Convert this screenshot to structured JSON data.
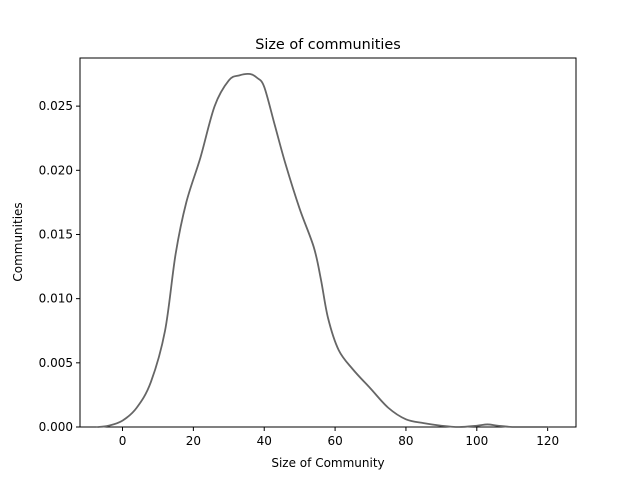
{
  "chart_data": {
    "type": "line",
    "title": "Size of communities",
    "xlabel": "Size of Community",
    "ylabel": "Communities",
    "xlim": [
      -12,
      128
    ],
    "ylim": [
      0,
      0.02875
    ],
    "xticks": [
      0,
      20,
      40,
      60,
      80,
      100,
      120
    ],
    "xtick_labels": [
      "0",
      "20",
      "40",
      "60",
      "80",
      "100",
      "120"
    ],
    "yticks": [
      0.0,
      0.005,
      0.01,
      0.015,
      0.02,
      0.025
    ],
    "ytick_labels": [
      "0.000",
      "0.005",
      "0.010",
      "0.015",
      "0.020",
      "0.025"
    ],
    "grid": false,
    "legend": "none",
    "series": [
      {
        "color": "#666666",
        "x": [
          -7,
          -4,
          0,
          4,
          8,
          12,
          15,
          18,
          22,
          26,
          30,
          33,
          36,
          38,
          40,
          43,
          46,
          50,
          54,
          56,
          58,
          61,
          65,
          70,
          75,
          80,
          85,
          90,
          95,
          100,
          103,
          106,
          110,
          115,
          120
        ],
        "y": [
          0.0,
          0.0001,
          0.0005,
          0.0015,
          0.0035,
          0.0075,
          0.0135,
          0.0175,
          0.021,
          0.025,
          0.027,
          0.0274,
          0.0275,
          0.0272,
          0.0265,
          0.0235,
          0.0205,
          0.017,
          0.014,
          0.0115,
          0.0085,
          0.006,
          0.0045,
          0.003,
          0.0015,
          0.0006,
          0.0003,
          0.0001,
          0.0,
          0.0001,
          0.0002,
          0.0001,
          0.0,
          0.0,
          0.0
        ]
      }
    ]
  }
}
